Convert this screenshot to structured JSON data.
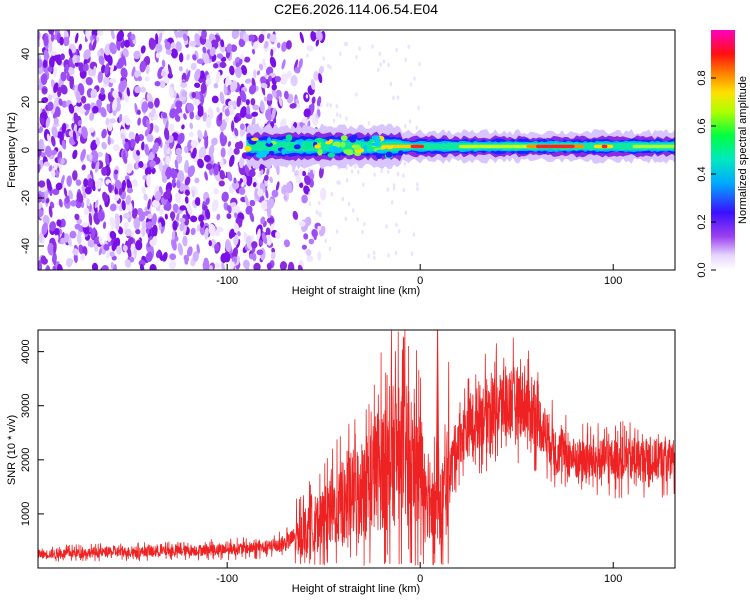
{
  "chart_data": [
    {
      "type": "heatmap",
      "title": "C2E6.2026.114.06.54.E04",
      "xlabel": "Height of straight line (km)",
      "ylabel": "Frequency (Hz)",
      "xlim": [
        -198,
        132
      ],
      "ylim": [
        -50,
        50
      ],
      "xticks": [
        -100,
        0,
        100
      ],
      "yticks": [
        -40,
        -20,
        0,
        20,
        40
      ],
      "colorbar": {
        "label": "Normalized spectral amplitude",
        "range": [
          0,
          1
        ],
        "ticks": [
          "0.0",
          "0.2",
          "0.4",
          "0.6",
          "0.8"
        ],
        "colors": [
          "#ffffff",
          "#e8d8ff",
          "#8a2be2",
          "#2020ff",
          "#00c8ff",
          "#00ff80",
          "#a0ff00",
          "#ffff00",
          "#ff8000",
          "#ff0000",
          "#ff00a0"
        ]
      },
      "description_regions": {
        "noise_region_x": [
          -198,
          -58
        ],
        "signal_onset_x": -90,
        "signal_center_hz": 1.5
      }
    },
    {
      "type": "line",
      "xlabel": "Height of straight line (km)",
      "ylabel": "SNR (10 * v/v)",
      "xlim": [
        -198,
        132
      ],
      "ylim": [
        0,
        4400
      ],
      "xticks": [
        -100,
        0,
        100
      ],
      "yticks": [
        1000,
        2000,
        3000,
        4000
      ],
      "color": "#ee2222",
      "envelope": {
        "x": [
          -198,
          -180,
          -150,
          -120,
          -100,
          -80,
          -70,
          -60,
          -50,
          -40,
          -30,
          -20,
          -10,
          0,
          5,
          10,
          15,
          20,
          30,
          40,
          50,
          55,
          60,
          70,
          80,
          100,
          120,
          132
        ],
        "y": [
          250,
          280,
          300,
          320,
          350,
          380,
          450,
          700,
          900,
          1200,
          1500,
          1900,
          2200,
          1800,
          1400,
          1000,
          1800,
          2400,
          2800,
          3000,
          3100,
          3000,
          2800,
          2200,
          2000,
          2000,
          2000,
          2000
        ]
      },
      "annotations": {
        "spike_max": {
          "x": 9,
          "y": 4400
        },
        "dip_min": {
          "x": 11,
          "y": 100
        }
      }
    }
  ]
}
